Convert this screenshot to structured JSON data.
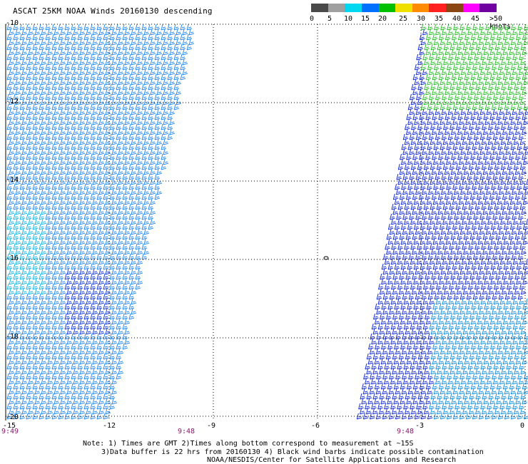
{
  "title": "ASCAT 25KM NOAA Winds 20160130 descending",
  "colorbar": {
    "labels": [
      "0",
      "5",
      "10",
      "15",
      "20",
      "25",
      "30",
      "35",
      "40",
      "45",
      ">50 knots"
    ],
    "colors": [
      "#4a4a4a",
      "#a0a0a0",
      "#00d8f0",
      "#0070ff",
      "#00c000",
      "#f0e000",
      "#ff8c00",
      "#ff2020",
      "#8b4513",
      "#ff00ff",
      "#7000a0"
    ]
  },
  "map": {
    "lat_labels": [
      "-10",
      "-12",
      "-14",
      "-16",
      "-18",
      "-20"
    ],
    "lon_labels": [
      "-15",
      "-12",
      "-9",
      "-6",
      "-3",
      "0"
    ],
    "time_labels": [
      "9:49",
      "9:48",
      "9:48"
    ],
    "swath_colors": {
      "left": "#2c8cf0",
      "left_dark": "#1a3fe0",
      "left_light": "#18b8e8",
      "right": "#1a2fd8",
      "right_green": "#30c030",
      "right_cyan": "#1890e0"
    }
  },
  "notes": {
    "line1": "Note: 1) Times are GMT 2)Times along bottom correspond to measurement at ~15S",
    "line2": "3)Data buffer is 22 hrs from 20160130 4) Black wind barbs indicate possible contamination",
    "line3": "NOAA/NESDIS/Center for Satellite Applications and Research"
  }
}
